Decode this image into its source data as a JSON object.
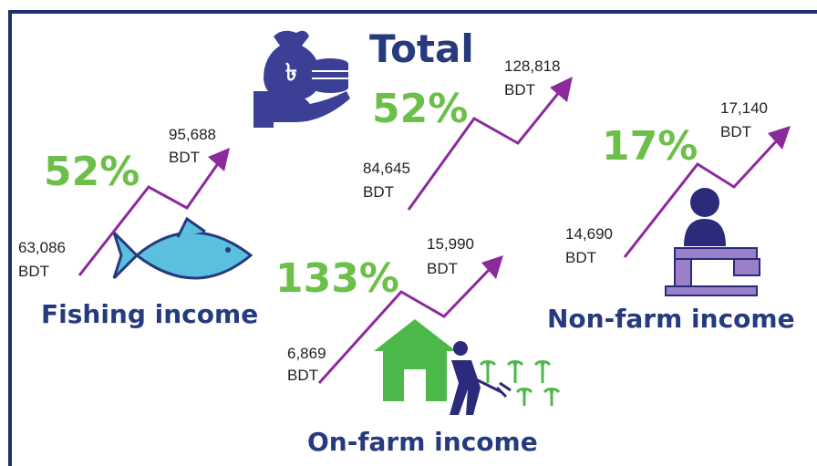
{
  "panels": [
    {
      "title": "Total",
      "change": "52%",
      "before": {
        "value": "84,645",
        "unit": "BDT"
      },
      "after": {
        "value": "128,818",
        "unit": "BDT"
      }
    },
    {
      "title": "Fishing income",
      "change": "52%",
      "before": {
        "value": "63,086",
        "unit": "BDT"
      },
      "after": {
        "value": "95,688",
        "unit": "BDT"
      }
    },
    {
      "title": "On-farm income",
      "change": "133%",
      "before": {
        "value": "6,869",
        "unit": "BDT"
      },
      "after": {
        "value": "15,990",
        "unit": "BDT"
      }
    },
    {
      "title": "Non-farm income",
      "change": "17%",
      "before": {
        "value": "14,690",
        "unit": "BDT"
      },
      "after": {
        "value": "17,140",
        "unit": "BDT"
      }
    }
  ]
}
